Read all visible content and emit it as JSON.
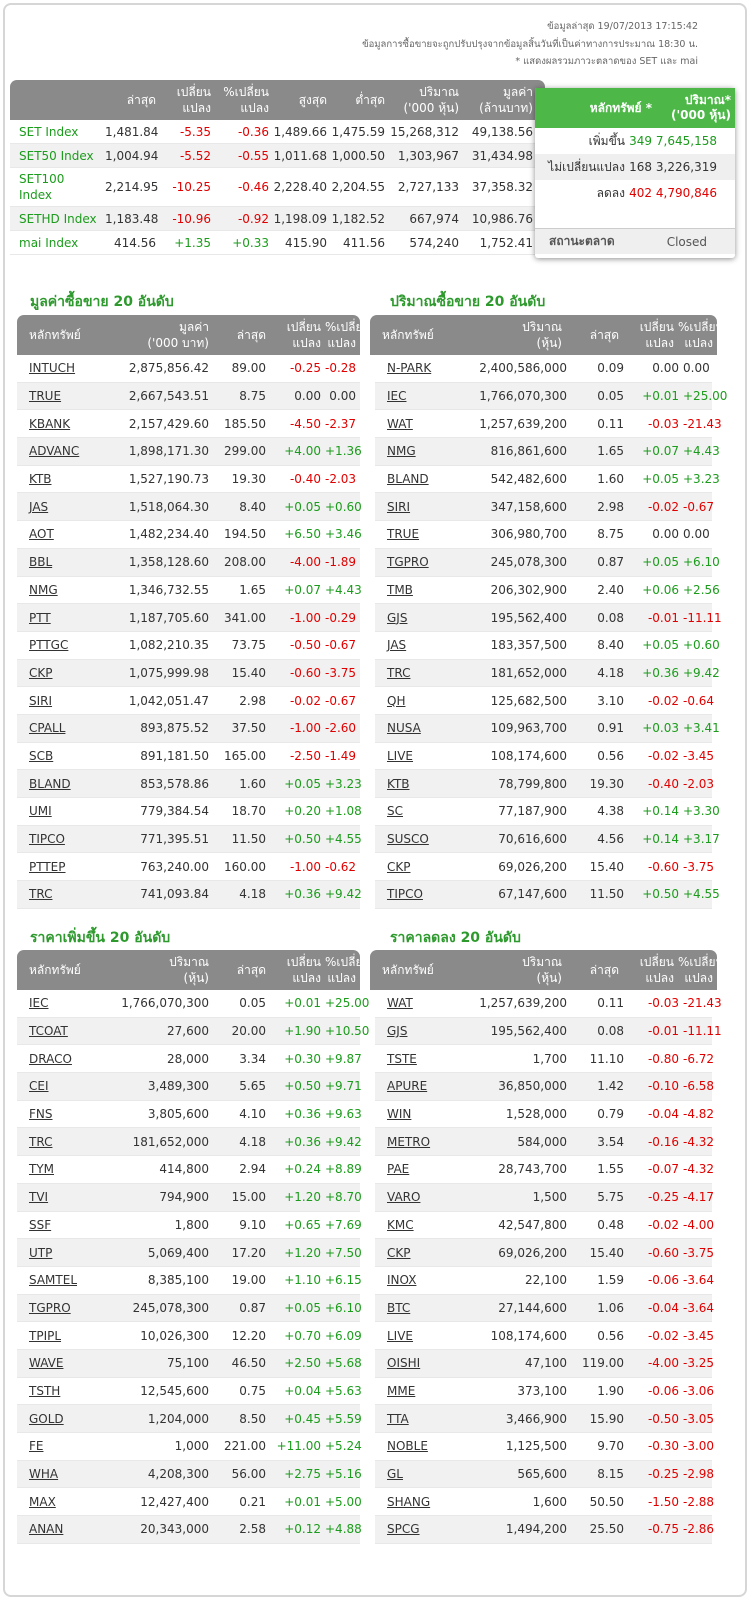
{
  "header": {
    "updated": "ข้อมูลล่าสุด 19/07/2013 17:15:42",
    "note": "ข้อมูลการซื้อขายจะถูกปรับปรุงจากข้อมูลสิ้นวันที่เป็นค่าทางการประมาณ 18:30 น.",
    "note2": "* แสดงผลรวมภาวะตลาดของ SET และ mai"
  },
  "index_table": {
    "columns": [
      "ล่าสุด",
      "เปลี่ยน\nแปลง",
      "%เปลี่ยน\nแปลง",
      "สูงสุด",
      "ต่ำสุด",
      "ปริมาณ\n('000 หุ้น)",
      "มูลค่า\n(ล้านบาท)"
    ],
    "rows": [
      [
        "SET Index",
        "1,481.84",
        "-5.35",
        "-0.36",
        "1,489.66",
        "1,475.59",
        "15,268,312",
        "49,138.56"
      ],
      [
        "SET50 Index",
        "1,004.94",
        "-5.52",
        "-0.55",
        "1,011.68",
        "1,000.50",
        "1,303,967",
        "31,434.98"
      ],
      [
        "SET100 Index",
        "2,214.95",
        "-10.25",
        "-0.46",
        "2,228.40",
        "2,204.55",
        "2,727,133",
        "37,358.32"
      ],
      [
        "SETHD Index",
        "1,183.48",
        "-10.96",
        "-0.92",
        "1,198.09",
        "1,182.52",
        "667,974",
        "10,986.76"
      ],
      [
        "mai Index",
        "414.56",
        "+1.35",
        "+0.33",
        "415.90",
        "411.56",
        "574,240",
        "1,752.41"
      ]
    ]
  },
  "summary": {
    "columns": [
      "หลักทรัพย์ *",
      "ปริมาณ*\n('000 หุ้น)"
    ],
    "rows": [
      [
        "เพิ่มขึ้น",
        "349",
        "7,645,158"
      ],
      [
        "ไม่เปลี่ยนแปลง",
        "168",
        "3,226,319"
      ],
      [
        "ลดลง",
        "402",
        "4,790,846"
      ]
    ],
    "status_label": "สถานะตลาด",
    "status": "Closed"
  },
  "top_value": {
    "title": "มูลค่าซื้อขาย 20 อันดับ",
    "columns": [
      "หลักทรัพย์",
      "มูลค่า\n('000 บาท)",
      "ล่าสุด",
      "เปลี่ยน\nแปลง",
      "%เปลี่ยน\nแปลง"
    ],
    "rows": [
      [
        "INTUCH",
        "2,875,856.42",
        "89.00",
        "-0.25",
        "-0.28"
      ],
      [
        "TRUE",
        "2,667,543.51",
        "8.75",
        "0.00",
        "0.00"
      ],
      [
        "KBANK",
        "2,157,429.60",
        "185.50",
        "-4.50",
        "-2.37"
      ],
      [
        "ADVANC",
        "1,898,171.30",
        "299.00",
        "+4.00",
        "+1.36"
      ],
      [
        "KTB",
        "1,527,190.73",
        "19.30",
        "-0.40",
        "-2.03"
      ],
      [
        "JAS",
        "1,518,064.30",
        "8.40",
        "+0.05",
        "+0.60"
      ],
      [
        "AOT",
        "1,482,234.40",
        "194.50",
        "+6.50",
        "+3.46"
      ],
      [
        "BBL",
        "1,358,128.60",
        "208.00",
        "-4.00",
        "-1.89"
      ],
      [
        "NMG",
        "1,346,732.55",
        "1.65",
        "+0.07",
        "+4.43"
      ],
      [
        "PTT",
        "1,187,705.60",
        "341.00",
        "-1.00",
        "-0.29"
      ],
      [
        "PTTGC",
        "1,082,210.35",
        "73.75",
        "-0.50",
        "-0.67"
      ],
      [
        "CKP",
        "1,075,999.98",
        "15.40",
        "-0.60",
        "-3.75"
      ],
      [
        "SIRI",
        "1,042,051.47",
        "2.98",
        "-0.02",
        "-0.67"
      ],
      [
        "CPALL",
        "893,875.52",
        "37.50",
        "-1.00",
        "-2.60"
      ],
      [
        "SCB",
        "891,181.50",
        "165.00",
        "-2.50",
        "-1.49"
      ],
      [
        "BLAND",
        "853,578.86",
        "1.60",
        "+0.05",
        "+3.23"
      ],
      [
        "UMI",
        "779,384.54",
        "18.70",
        "+0.20",
        "+1.08"
      ],
      [
        "TIPCO",
        "771,395.51",
        "11.50",
        "+0.50",
        "+4.55"
      ],
      [
        "PTTEP",
        "763,240.00",
        "160.00",
        "-1.00",
        "-0.62"
      ],
      [
        "TRC",
        "741,093.84",
        "4.18",
        "+0.36",
        "+9.42"
      ]
    ]
  },
  "top_volume": {
    "title": "ปริมาณซื้อขาย 20 อันดับ",
    "columns": [
      "หลักทรัพย์",
      "ปริมาณ\n(หุ้น)",
      "ล่าสุด",
      "เปลี่ยน\nแปลง",
      "%เปลี่ยน\nแปลง"
    ],
    "rows": [
      [
        "N-PARK",
        "2,400,586,000",
        "0.09",
        "0.00",
        "0.00"
      ],
      [
        "IEC",
        "1,766,070,300",
        "0.05",
        "+0.01",
        "+25.00"
      ],
      [
        "WAT",
        "1,257,639,200",
        "0.11",
        "-0.03",
        "-21.43"
      ],
      [
        "NMG",
        "816,861,600",
        "1.65",
        "+0.07",
        "+4.43"
      ],
      [
        "BLAND",
        "542,482,600",
        "1.60",
        "+0.05",
        "+3.23"
      ],
      [
        "SIRI",
        "347,158,600",
        "2.98",
        "-0.02",
        "-0.67"
      ],
      [
        "TRUE",
        "306,980,700",
        "8.75",
        "0.00",
        "0.00"
      ],
      [
        "TGPRO",
        "245,078,300",
        "0.87",
        "+0.05",
        "+6.10"
      ],
      [
        "TMB",
        "206,302,900",
        "2.40",
        "+0.06",
        "+2.56"
      ],
      [
        "GJS",
        "195,562,400",
        "0.08",
        "-0.01",
        "-11.11"
      ],
      [
        "JAS",
        "183,357,500",
        "8.40",
        "+0.05",
        "+0.60"
      ],
      [
        "TRC",
        "181,652,000",
        "4.18",
        "+0.36",
        "+9.42"
      ],
      [
        "QH",
        "125,682,500",
        "3.10",
        "-0.02",
        "-0.64"
      ],
      [
        "NUSA",
        "109,963,700",
        "0.91",
        "+0.03",
        "+3.41"
      ],
      [
        "LIVE",
        "108,174,600",
        "0.56",
        "-0.02",
        "-3.45"
      ],
      [
        "KTB",
        "78,799,800",
        "19.30",
        "-0.40",
        "-2.03"
      ],
      [
        "SC",
        "77,187,900",
        "4.38",
        "+0.14",
        "+3.30"
      ],
      [
        "SUSCO",
        "70,616,600",
        "4.56",
        "+0.14",
        "+3.17"
      ],
      [
        "CKP",
        "69,026,200",
        "15.40",
        "-0.60",
        "-3.75"
      ],
      [
        "TIPCO",
        "67,147,600",
        "11.50",
        "+0.50",
        "+4.55"
      ]
    ]
  },
  "top_gainers": {
    "title": "ราคาเพิ่มขึ้น 20 อันดับ",
    "columns": [
      "หลักทรัพย์",
      "ปริมาณ\n(หุ้น)",
      "ล่าสุด",
      "เปลี่ยน\nแปลง",
      "%เปลี่ยน\nแปลง"
    ],
    "rows": [
      [
        "IEC",
        "1,766,070,300",
        "0.05",
        "+0.01",
        "+25.00"
      ],
      [
        "TCOAT",
        "27,600",
        "20.00",
        "+1.90",
        "+10.50"
      ],
      [
        "DRACO",
        "28,000",
        "3.34",
        "+0.30",
        "+9.87"
      ],
      [
        "CEI",
        "3,489,300",
        "5.65",
        "+0.50",
        "+9.71"
      ],
      [
        "FNS",
        "3,805,600",
        "4.10",
        "+0.36",
        "+9.63"
      ],
      [
        "TRC",
        "181,652,000",
        "4.18",
        "+0.36",
        "+9.42"
      ],
      [
        "TYM",
        "414,800",
        "2.94",
        "+0.24",
        "+8.89"
      ],
      [
        "TVI",
        "794,900",
        "15.00",
        "+1.20",
        "+8.70"
      ],
      [
        "SSF",
        "1,800",
        "9.10",
        "+0.65",
        "+7.69"
      ],
      [
        "UTP",
        "5,069,400",
        "17.20",
        "+1.20",
        "+7.50"
      ],
      [
        "SAMTEL",
        "8,385,100",
        "19.00",
        "+1.10",
        "+6.15"
      ],
      [
        "TGPRO",
        "245,078,300",
        "0.87",
        "+0.05",
        "+6.10"
      ],
      [
        "TPIPL",
        "10,026,300",
        "12.20",
        "+0.70",
        "+6.09"
      ],
      [
        "WAVE",
        "75,100",
        "46.50",
        "+2.50",
        "+5.68"
      ],
      [
        "TSTH",
        "12,545,600",
        "0.75",
        "+0.04",
        "+5.63"
      ],
      [
        "GOLD",
        "1,204,000",
        "8.50",
        "+0.45",
        "+5.59"
      ],
      [
        "FE",
        "1,000",
        "221.00",
        "+11.00",
        "+5.24"
      ],
      [
        "WHA",
        "4,208,300",
        "56.00",
        "+2.75",
        "+5.16"
      ],
      [
        "MAX",
        "12,427,400",
        "0.21",
        "+0.01",
        "+5.00"
      ],
      [
        "ANAN",
        "20,343,000",
        "2.58",
        "+0.12",
        "+4.88"
      ]
    ]
  },
  "top_losers": {
    "title": "ราคาลดลง 20 อันดับ",
    "columns": [
      "หลักทรัพย์",
      "ปริมาณ\n(หุ้น)",
      "ล่าสุด",
      "เปลี่ยน\nแปลง",
      "%เปลี่ยน\nแปลง"
    ],
    "rows": [
      [
        "WAT",
        "1,257,639,200",
        "0.11",
        "-0.03",
        "-21.43"
      ],
      [
        "GJS",
        "195,562,400",
        "0.08",
        "-0.01",
        "-11.11"
      ],
      [
        "TSTE",
        "1,700",
        "11.10",
        "-0.80",
        "-6.72"
      ],
      [
        "APURE",
        "36,850,000",
        "1.42",
        "-0.10",
        "-6.58"
      ],
      [
        "WIN",
        "1,528,000",
        "0.79",
        "-0.04",
        "-4.82"
      ],
      [
        "METRO",
        "584,000",
        "3.54",
        "-0.16",
        "-4.32"
      ],
      [
        "PAE",
        "28,743,700",
        "1.55",
        "-0.07",
        "-4.32"
      ],
      [
        "VARO",
        "1,500",
        "5.75",
        "-0.25",
        "-4.17"
      ],
      [
        "KMC",
        "42,547,800",
        "0.48",
        "-0.02",
        "-4.00"
      ],
      [
        "CKP",
        "69,026,200",
        "15.40",
        "-0.60",
        "-3.75"
      ],
      [
        "INOX",
        "22,100",
        "1.59",
        "-0.06",
        "-3.64"
      ],
      [
        "BTC",
        "27,144,600",
        "1.06",
        "-0.04",
        "-3.64"
      ],
      [
        "LIVE",
        "108,174,600",
        "0.56",
        "-0.02",
        "-3.45"
      ],
      [
        "OISHI",
        "47,100",
        "119.00",
        "-4.00",
        "-3.25"
      ],
      [
        "MME",
        "373,100",
        "1.90",
        "-0.06",
        "-3.06"
      ],
      [
        "TTA",
        "3,466,900",
        "15.90",
        "-0.50",
        "-3.05"
      ],
      [
        "NOBLE",
        "1,125,500",
        "9.70",
        "-0.30",
        "-3.00"
      ],
      [
        "GL",
        "565,600",
        "8.15",
        "-0.25",
        "-2.98"
      ],
      [
        "SHANG",
        "1,600",
        "50.50",
        "-1.50",
        "-2.88"
      ],
      [
        "SPCG",
        "1,494,200",
        "25.50",
        "-0.75",
        "-2.86"
      ]
    ]
  }
}
